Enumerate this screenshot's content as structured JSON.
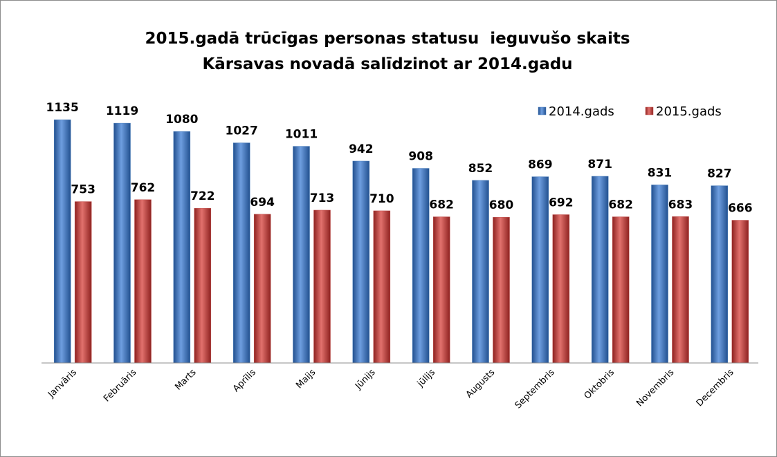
{
  "chart_data": {
    "type": "bar",
    "title": "2015.gadā trūcīgas personas statusu  ieguvušo skaits Kārsavas novadā salīdzinot ar 2014.gadu",
    "categories": [
      "Janvāris",
      "Februāris",
      "Marts",
      "Aprīlis",
      "Maijs",
      "Jūnijs",
      "jūlijs",
      "Augusts",
      "Septembris",
      "Oktobris",
      "Novembris",
      "Decembris"
    ],
    "series": [
      {
        "name": "2014.gads",
        "color": "#4a7ebb",
        "values": [
          1135,
          1119,
          1080,
          1027,
          1011,
          942,
          908,
          852,
          869,
          871,
          831,
          827
        ]
      },
      {
        "name": "2015.gads",
        "color": "#c0504d",
        "values": [
          753,
          762,
          722,
          694,
          713,
          710,
          682,
          680,
          692,
          682,
          683,
          666
        ]
      }
    ],
    "ylim": [
      0,
      1200
    ],
    "legend": "top-right"
  }
}
